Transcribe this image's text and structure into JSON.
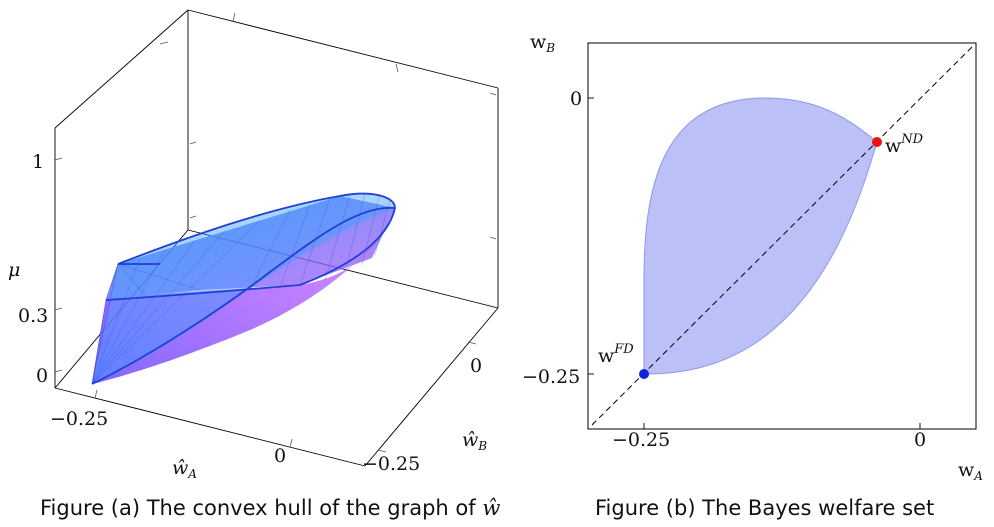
{
  "figure_a": {
    "caption_text": "Figure (a) The convex hull of the graph of ",
    "caption_symbol": "ŵ",
    "z_label": "μ",
    "x_label_base": "ŵ",
    "x_label_sub": "A",
    "y_label_base": "ŵ",
    "y_label_sub": "B",
    "z_ticks": [
      "1",
      "0.3",
      "0"
    ],
    "x_ticks": [
      "−0.25",
      "0"
    ],
    "y_ticks": [
      "0",
      "−0.25"
    ],
    "colors": {
      "hull_fill": "#3399ff",
      "inner_fill": "#cc44ff",
      "edge": "#1f3fd6",
      "frame": "#000000"
    }
  },
  "figure_b": {
    "caption": "Figure (b) The Bayes welfare set",
    "x_label_base": "w",
    "x_label_sub": "A",
    "y_label_base": "w",
    "y_label_sub": "B",
    "x_ticks": [
      "−0.25",
      "0"
    ],
    "y_ticks": [
      "0",
      "−0.25"
    ],
    "point_nd_base": "w",
    "point_nd_sup": "ND",
    "point_fd_base": "w",
    "point_fd_sup": "FD",
    "colors": {
      "region": "#aab0f5",
      "region_edge": "#8f96ee",
      "nd_point": "#ee1111",
      "fd_point": "#1122dd"
    }
  },
  "chart_data": {
    "type": "area",
    "x": {
      "ticks": [
        -0.25,
        0
      ]
    },
    "y": {
      "ticks": [
        0,
        -0.25
      ]
    },
    "points": [
      {
        "name": "w^ND",
        "x": -0.04,
        "y": -0.04
      },
      {
        "name": "w^FD",
        "x": -0.25,
        "y": -0.25
      }
    ],
    "diagonal": "dashed y = x"
  }
}
